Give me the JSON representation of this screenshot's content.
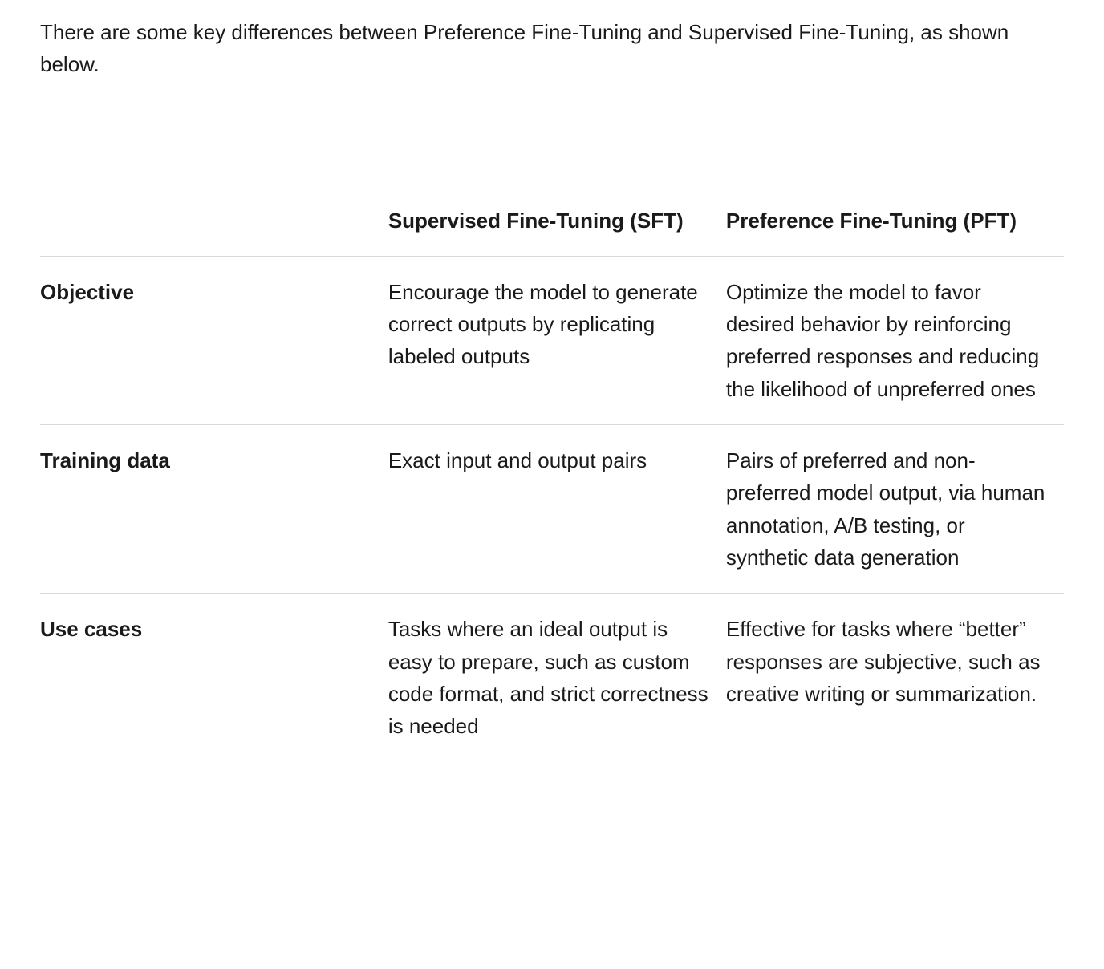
{
  "intro_text": "There are some key differences between Preference Fine-Tuning and Supervised Fine-Tuning, as shown below.",
  "table": {
    "columns": [
      "",
      "Supervised Fine-Tuning (SFT)",
      "Preference Fine-Tuning (PFT)"
    ],
    "rows": [
      {
        "label": "Objective",
        "sft": "Encourage the model to generate correct outputs by replicating labeled outputs",
        "pft": "Optimize the model to favor desired behavior by reinforcing preferred responses and reducing the likelihood of unpreferred ones"
      },
      {
        "label": "Training data",
        "sft": "Exact input and output pairs",
        "pft": "Pairs of preferred and non-preferred model output, via human annotation, A/B testing, or synthetic data generation"
      },
      {
        "label": "Use cases",
        "sft": "Tasks where an ideal output is easy to prepare, such as custom code format, and strict correctness is needed",
        "pft": "Effective for tasks where “better” responses are subjective, such as creative writing or summarization."
      }
    ]
  },
  "styles": {
    "background_color": "#ffffff",
    "text_color": "#1a1a1a",
    "border_color": "#d9d9d9",
    "font_size_body": 26,
    "font_weight_header": 600
  }
}
